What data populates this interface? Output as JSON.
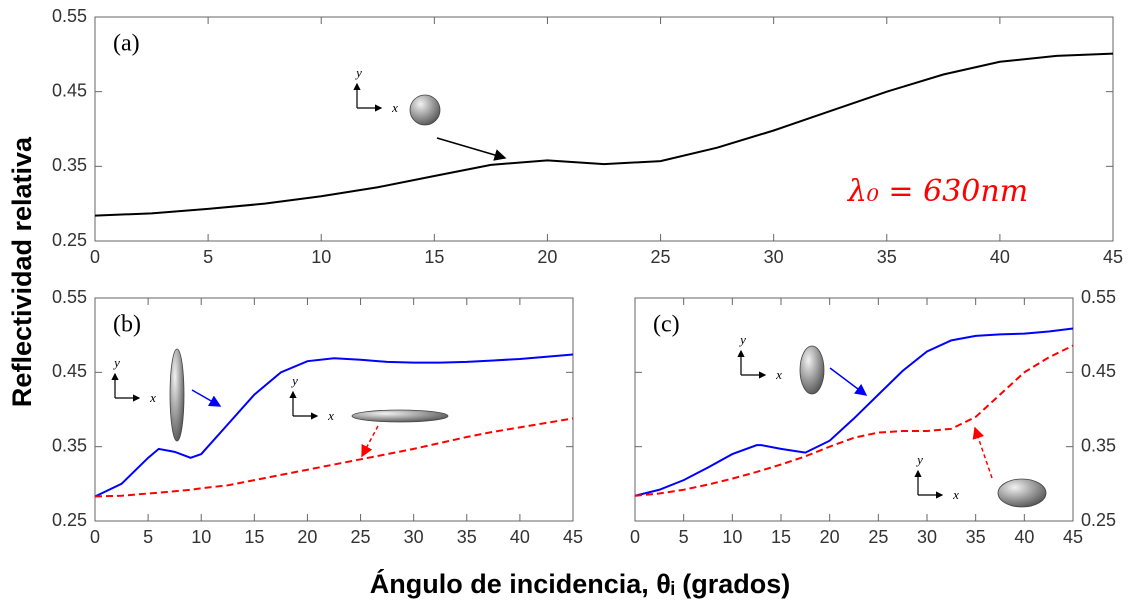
{
  "ylabel": "Reflectividad relativa",
  "xlabel": "Ángulo de incidencia, θᵢ (grados)",
  "chart_data": [
    {
      "type": "line",
      "title": "(a)",
      "annotation": "λ₀ = 630nm",
      "annotation_color": "#ff0000",
      "x": [
        0,
        2.5,
        5,
        7.5,
        10,
        12.5,
        15,
        17.5,
        20,
        22.5,
        25,
        27.5,
        30,
        32.5,
        35,
        37.5,
        40,
        42.5,
        45
      ],
      "series": [
        {
          "color": "#000000",
          "dash": false,
          "values": [
            0.284,
            0.287,
            0.293,
            0.3,
            0.31,
            0.322,
            0.337,
            0.352,
            0.358,
            0.353,
            0.357,
            0.375,
            0.398,
            0.424,
            0.45,
            0.473,
            0.49,
            0.498,
            0.501
          ]
        }
      ],
      "xlim": [
        0,
        45
      ],
      "xticks": [
        0,
        5,
        10,
        15,
        20,
        25,
        30,
        35,
        40,
        45
      ],
      "ylim": [
        0.25,
        0.55
      ],
      "yticks": [
        0.25,
        0.35,
        0.45,
        0.55
      ],
      "yaxis_side": "left",
      "insets": [
        {
          "x": "x",
          "y": "y"
        }
      ]
    },
    {
      "type": "line",
      "title": "(b)",
      "x": [
        0,
        2.5,
        5,
        6,
        7.5,
        9,
        10,
        12.5,
        15,
        17.5,
        20,
        22.5,
        25,
        27.5,
        30,
        32.5,
        35,
        37.5,
        40,
        42.5,
        45
      ],
      "series": [
        {
          "color": "#0000ff",
          "dash": false,
          "values": [
            0.283,
            0.3,
            0.335,
            0.347,
            0.343,
            0.335,
            0.34,
            0.38,
            0.42,
            0.45,
            0.465,
            0.469,
            0.467,
            0.464,
            0.463,
            0.463,
            0.464,
            0.466,
            0.468,
            0.471,
            0.474
          ]
        },
        {
          "color": "#ff0000",
          "dash": true,
          "values": [
            0.283,
            0.284,
            0.287,
            0.288,
            0.29,
            0.292,
            0.294,
            0.298,
            0.305,
            0.312,
            0.319,
            0.326,
            0.333,
            0.34,
            0.347,
            0.355,
            0.363,
            0.37,
            0.376,
            0.382,
            0.388
          ]
        }
      ],
      "xlim": [
        0,
        45
      ],
      "xticks": [
        0,
        5,
        10,
        15,
        20,
        25,
        30,
        35,
        40,
        45
      ],
      "ylim": [
        0.25,
        0.55
      ],
      "yticks": [
        0.25,
        0.35,
        0.45,
        0.55
      ],
      "yaxis_side": "left",
      "insets": [
        {
          "x": "x",
          "y": "y"
        },
        {
          "x": "x",
          "y": "y"
        }
      ]
    },
    {
      "type": "line",
      "title": "(c)",
      "x": [
        0,
        2.5,
        5,
        7.5,
        10,
        12.5,
        13,
        15,
        17.5,
        20,
        22.5,
        25,
        27.5,
        30,
        32.5,
        35,
        37.5,
        40,
        42.5,
        45
      ],
      "series": [
        {
          "color": "#0000ff",
          "dash": false,
          "values": [
            0.284,
            0.292,
            0.305,
            0.322,
            0.34,
            0.352,
            0.352,
            0.347,
            0.342,
            0.358,
            0.388,
            0.42,
            0.452,
            0.478,
            0.493,
            0.499,
            0.501,
            0.502,
            0.505,
            0.509
          ]
        },
        {
          "color": "#ff0000",
          "dash": true,
          "values": [
            0.284,
            0.287,
            0.292,
            0.299,
            0.307,
            0.316,
            0.318,
            0.326,
            0.337,
            0.35,
            0.362,
            0.369,
            0.371,
            0.371,
            0.374,
            0.39,
            0.42,
            0.45,
            0.47,
            0.486
          ]
        }
      ],
      "xlim": [
        0,
        45
      ],
      "xticks": [
        0,
        5,
        10,
        15,
        20,
        25,
        30,
        35,
        40,
        45
      ],
      "ylim": [
        0.25,
        0.55
      ],
      "yticks": [
        0.25,
        0.35,
        0.45,
        0.55
      ],
      "yaxis_side": "right",
      "insets": [
        {
          "x": "x",
          "y": "y"
        },
        {
          "x": "x",
          "y": "y"
        }
      ]
    }
  ]
}
